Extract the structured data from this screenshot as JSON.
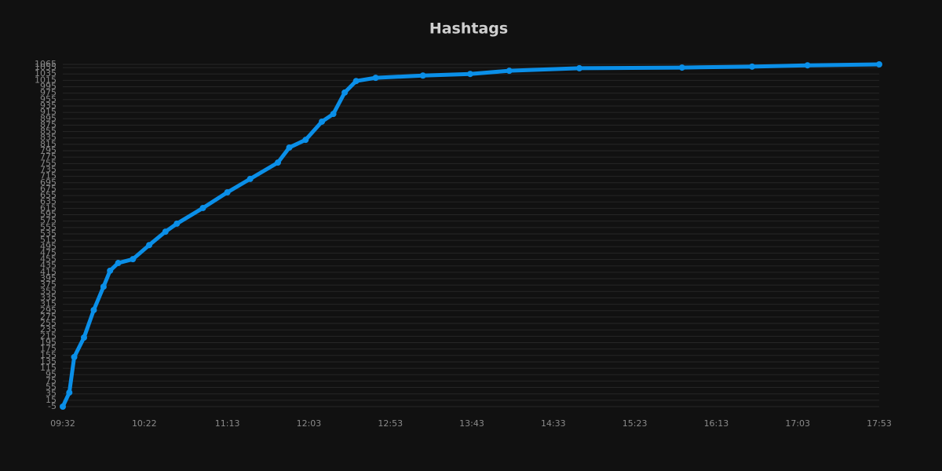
{
  "chart_data": {
    "type": "line",
    "title": "Hashtags",
    "x": [
      "09:32",
      "09:36",
      "09:39",
      "09:45",
      "09:51",
      "09:57",
      "10:01",
      "10:06",
      "10:15",
      "10:25",
      "10:35",
      "10:42",
      "10:58",
      "11:13",
      "11:27",
      "11:44",
      "11:51",
      "12:01",
      "12:11",
      "12:18",
      "12:25",
      "12:32",
      "12:44",
      "13:13",
      "13:42",
      "14:06",
      "14:49",
      "15:52",
      "16:35",
      "17:09",
      "17:53"
    ],
    "series": [
      {
        "name": "Hashtags",
        "color": "#0a8fe8",
        "values": [
          -5,
          39,
          150,
          211,
          297,
          370,
          420,
          444,
          456,
          500,
          542,
          567,
          616,
          665,
          707,
          758,
          805,
          829,
          886,
          910,
          977,
          1013,
          1023,
          1030,
          1035,
          1045,
          1053,
          1055,
          1058,
          1062,
          1065
        ]
      }
    ],
    "xlim": [
      "09:32",
      "17:53"
    ],
    "xticks": [
      "09:32",
      "10:22",
      "11:13",
      "12:03",
      "12:53",
      "13:43",
      "14:33",
      "15:23",
      "16:13",
      "17:03",
      "17:53"
    ],
    "ylim": [
      -5,
      1065
    ],
    "yticks": [
      -5,
      15,
      35,
      55,
      75,
      95,
      115,
      135,
      155,
      175,
      195,
      215,
      235,
      255,
      275,
      295,
      315,
      335,
      355,
      375,
      395,
      415,
      435,
      455,
      475,
      495,
      515,
      535,
      555,
      575,
      595,
      615,
      635,
      655,
      675,
      695,
      715,
      735,
      755,
      775,
      795,
      815,
      835,
      855,
      875,
      895,
      915,
      935,
      955,
      975,
      995,
      1015,
      1035,
      1055,
      1065
    ],
    "grid": true
  }
}
